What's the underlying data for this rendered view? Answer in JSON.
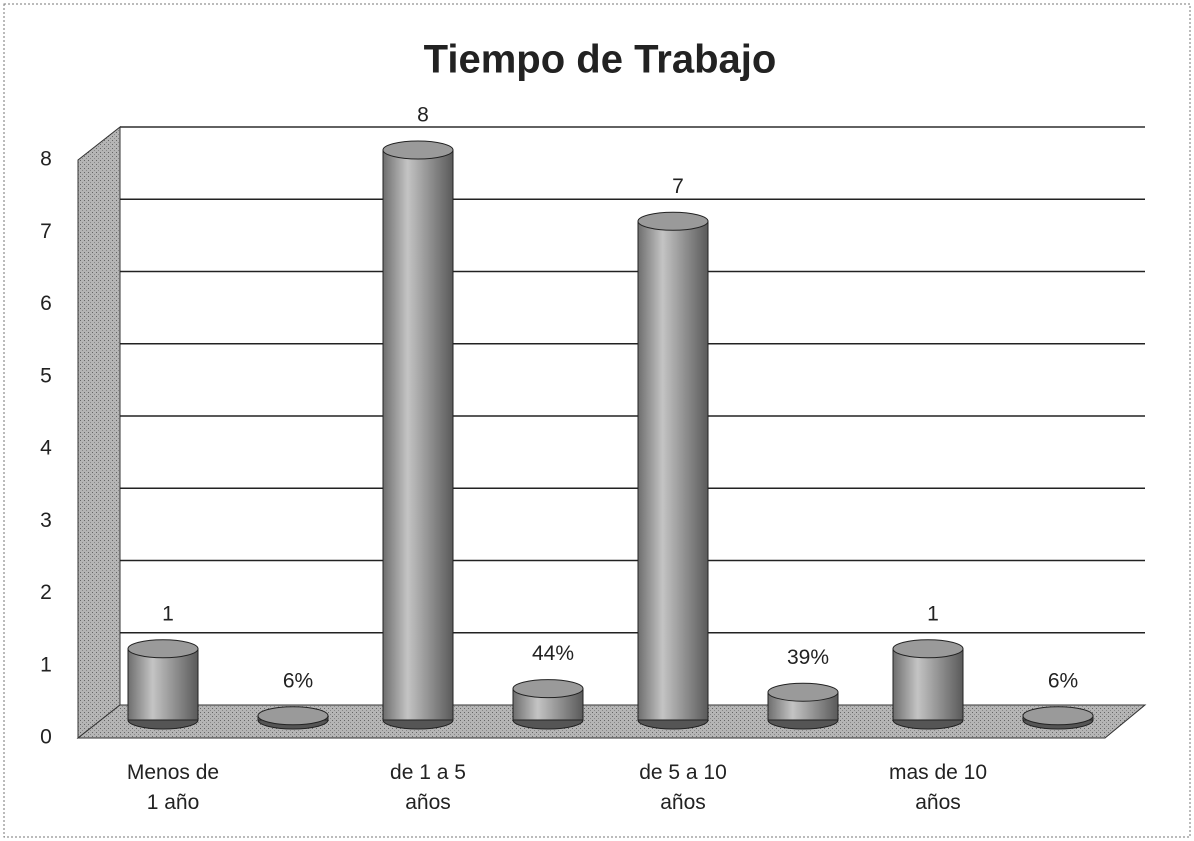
{
  "chart_data": {
    "type": "bar3d",
    "title": "Tiempo de Trabajo",
    "categories": [
      "Menos de\n1 año",
      "de 1 a 5\naños",
      "de 5 a 10\naños",
      "mas de 10\naños"
    ],
    "series": [
      {
        "color": "#9a9a9a",
        "values": [
          1,
          8,
          7,
          1
        ]
      },
      {
        "color": "#9a9a9a",
        "values": [
          0.06,
          0.44,
          0.39,
          0.06
        ],
        "value_labels": [
          "6%",
          "44%",
          "39%",
          "6%"
        ]
      }
    ],
    "ylim": [
      0,
      8
    ],
    "yticks": [
      0,
      1,
      2,
      3,
      4,
      5,
      6,
      7,
      8
    ],
    "grid": true
  }
}
